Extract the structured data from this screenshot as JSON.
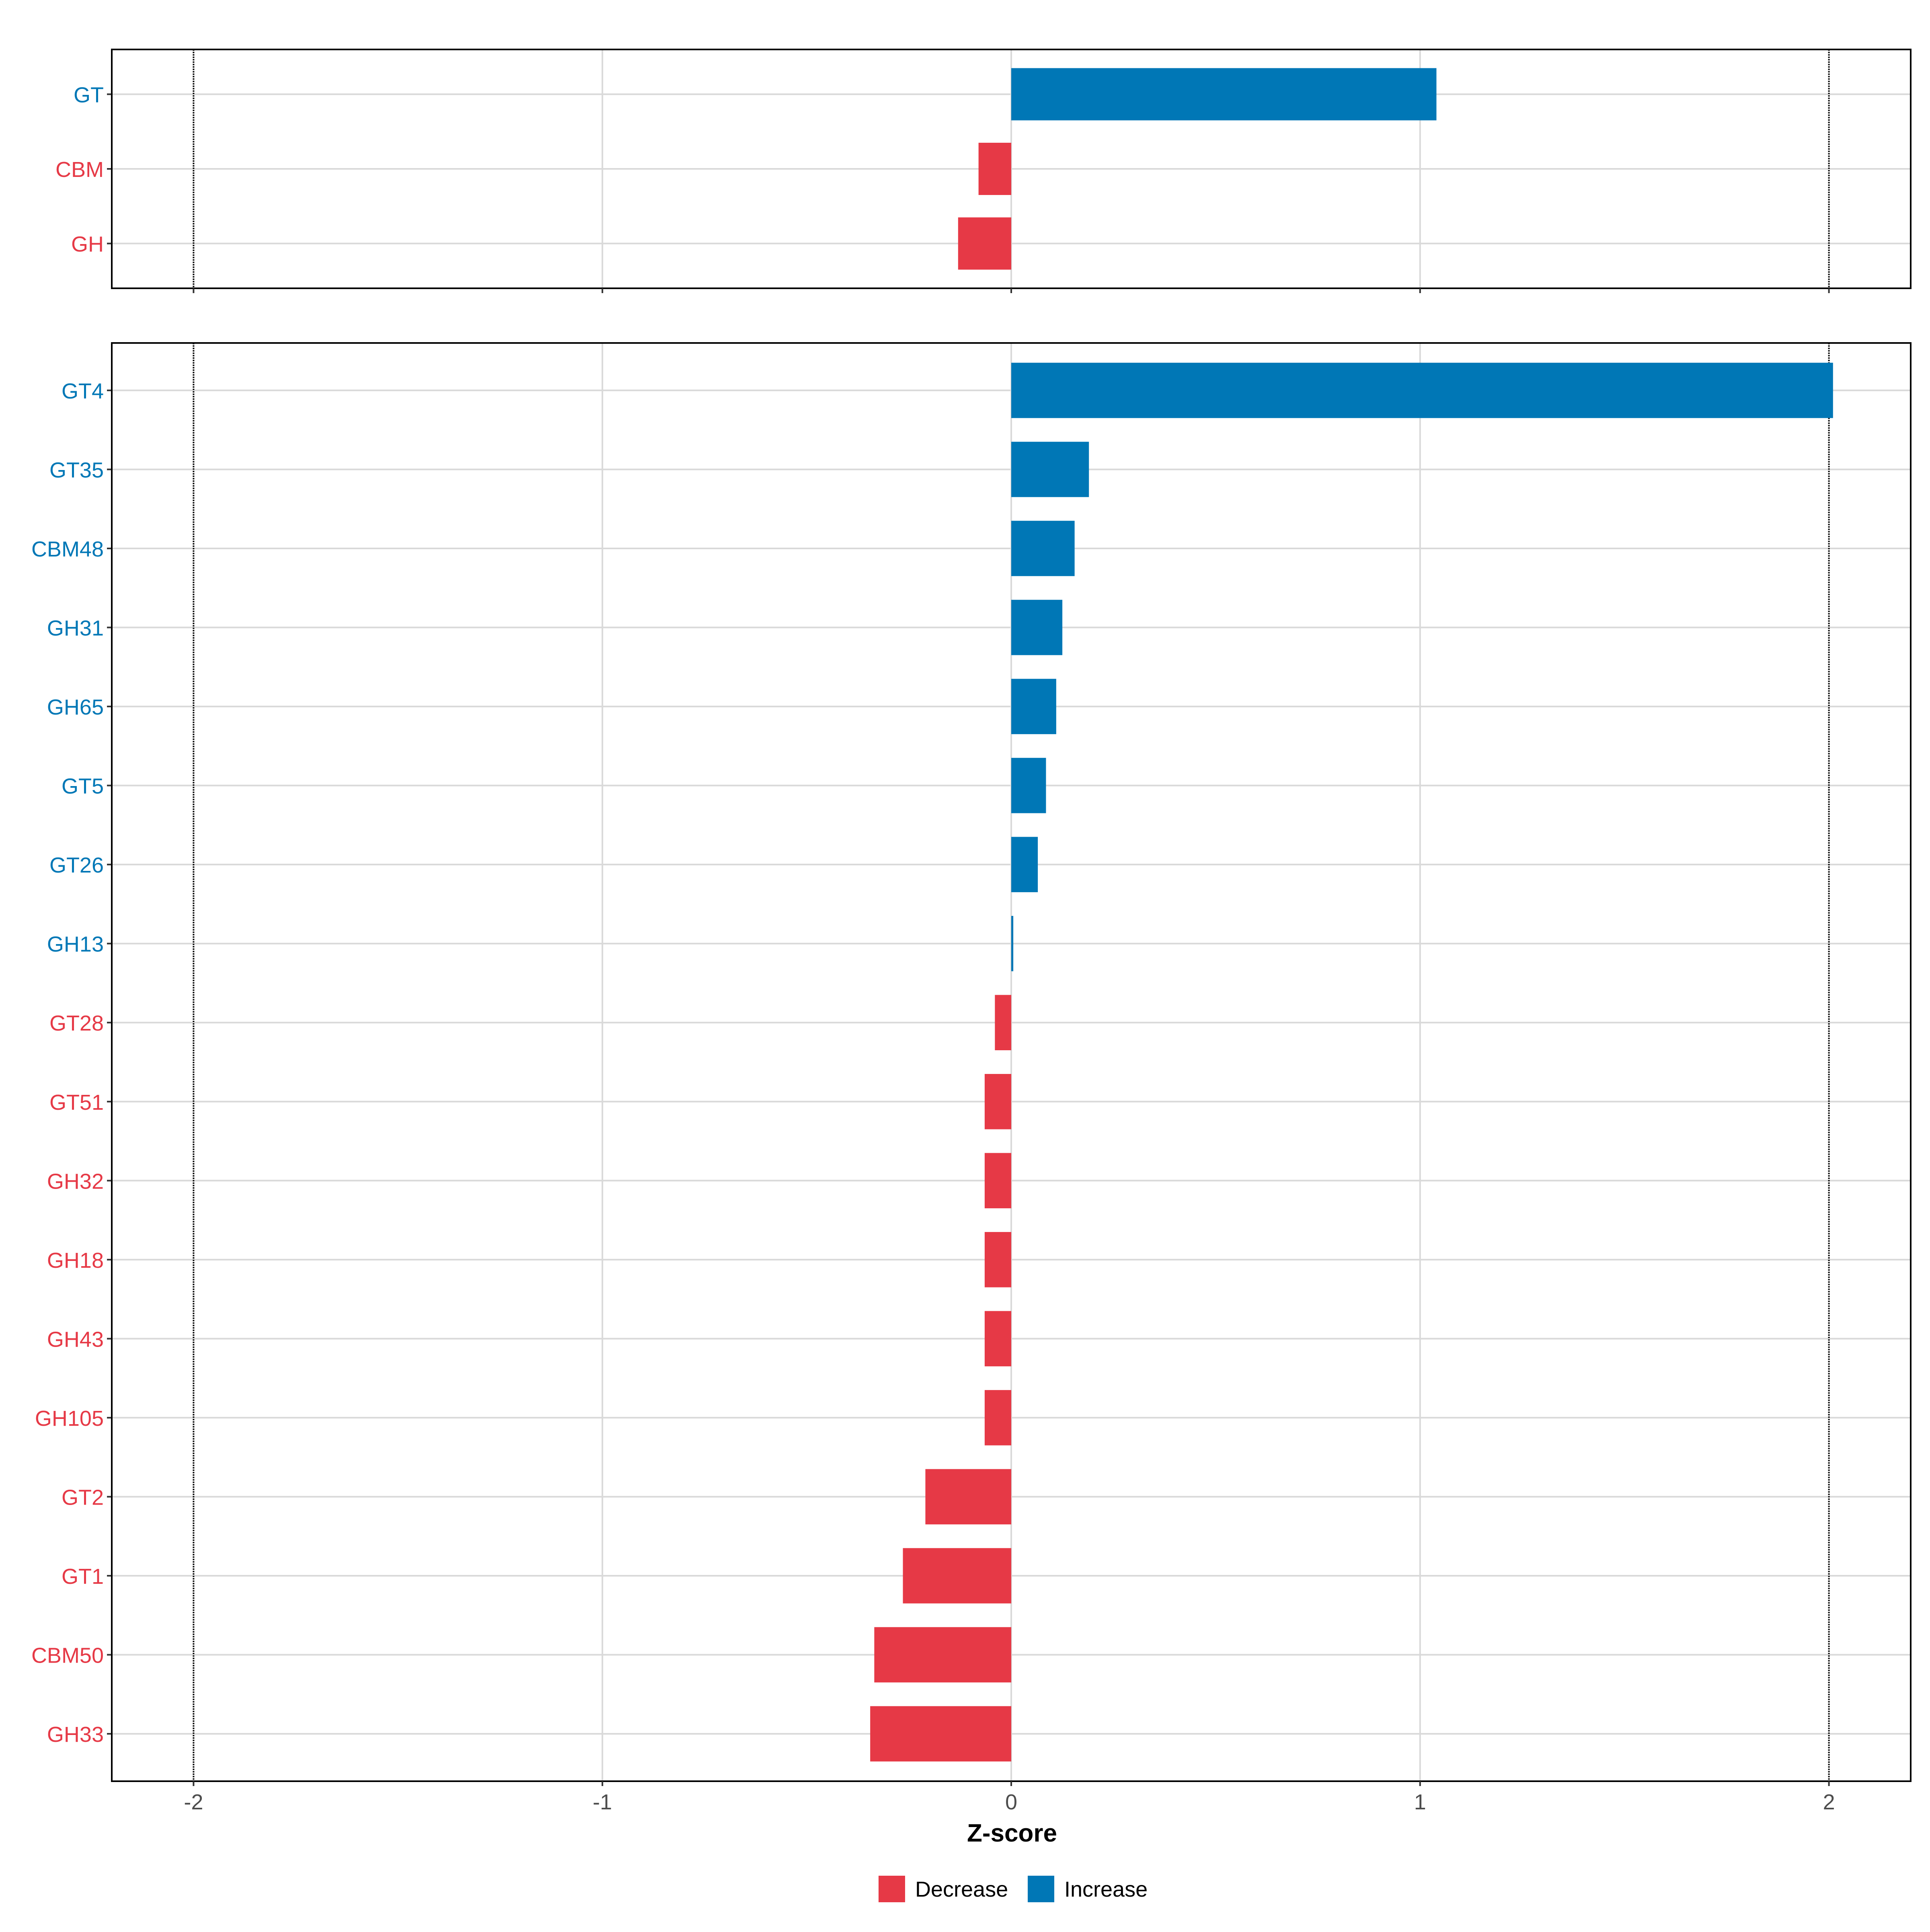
{
  "chart_data": [
    {
      "type": "bar",
      "orientation": "horizontal",
      "panel": "top",
      "categories": [
        "GT",
        "CBM",
        "GH"
      ],
      "values": [
        1.04,
        -0.08,
        -0.13
      ],
      "xlim": [
        -2.2,
        2.2
      ],
      "reference_lines": [
        -2,
        2
      ],
      "grid": true
    },
    {
      "type": "bar",
      "orientation": "horizontal",
      "panel": "bottom",
      "categories": [
        "GT4",
        "GT35",
        "CBM48",
        "GH31",
        "GH65",
        "GT5",
        "GT26",
        "GH13",
        "GT28",
        "GT51",
        "GH32",
        "GH18",
        "GH43",
        "GH105",
        "GT2",
        "GT1",
        "CBM50",
        "GH33"
      ],
      "values": [
        2.01,
        0.19,
        0.155,
        0.125,
        0.11,
        0.085,
        0.065,
        0.005,
        -0.04,
        -0.065,
        -0.065,
        -0.065,
        -0.065,
        -0.065,
        -0.21,
        -0.265,
        -0.335,
        -0.345
      ],
      "xlim": [
        -2.2,
        2.2
      ],
      "x_ticks": [
        "-2",
        "-1",
        "0",
        "1",
        "2"
      ],
      "x_tick_values": [
        -2,
        -1,
        0,
        1,
        2
      ],
      "xlabel": "Z-score",
      "reference_lines": [
        -2,
        2
      ],
      "grid": true
    }
  ],
  "legend": {
    "placement": "bottom",
    "items": [
      {
        "label": "Decrease",
        "color": "#E63946"
      },
      {
        "label": "Increase",
        "color": "#0077B6"
      }
    ]
  },
  "colors": {
    "decrease": "#E63946",
    "increase": "#0077B6",
    "grid": "#d9d9d9",
    "panel_border": "#000000"
  }
}
